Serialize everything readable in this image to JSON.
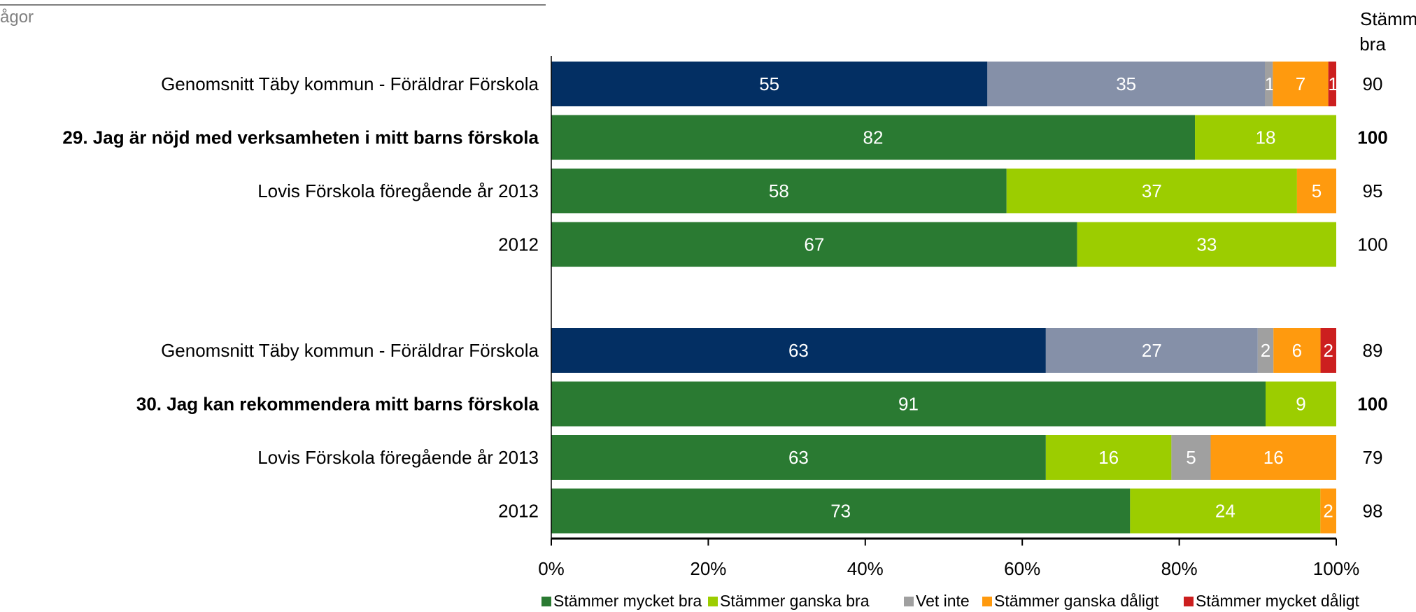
{
  "header_fragment": "ågor",
  "right_header": [
    "Stämmer",
    "bra"
  ],
  "chart_data": {
    "type": "bar",
    "orientation": "horizontal",
    "stacked": true,
    "percent_stacked": true,
    "series": [
      {
        "name": "Stämmer mycket bra",
        "color": "#2a7a32"
      },
      {
        "name": "Stämmer ganska bra",
        "color": "#9ccd00"
      },
      {
        "name": "Vet inte",
        "color": "#a0a0a0"
      },
      {
        "name": "Stämmer ganska dåligt",
        "color": "#ff9a0e"
      },
      {
        "name": "Stämmer mycket dåligt",
        "color": "#cc1f1f"
      }
    ],
    "benchmark_colors": [
      "#032f63",
      "#8590a8",
      "#a0a0a0",
      "#ff9a0e",
      "#cc1f1f"
    ],
    "groups": [
      {
        "rows": [
          {
            "label": "Genomsnitt Täby kommun - Föräldrar Förskola",
            "bold": false,
            "benchmark": true,
            "values": [
              55,
              35,
              1,
              7,
              1
            ],
            "value_labels": [
              "55",
              "35",
              "1",
              "7",
              "1"
            ],
            "stammer_bra": "90"
          },
          {
            "label": "29. Jag är nöjd med verksamheten i mitt barns förskola",
            "bold": true,
            "benchmark": false,
            "values": [
              82,
              18,
              0,
              0,
              0
            ],
            "value_labels": [
              "82",
              "18",
              "0",
              "",
              ""
            ],
            "stammer_bra": "100"
          },
          {
            "label": "Lovis Förskola föregående år 2013",
            "bold": false,
            "benchmark": false,
            "values": [
              58,
              37,
              0,
              5,
              0
            ],
            "value_labels": [
              "58",
              "37",
              "0",
              "5",
              "0"
            ],
            "stammer_bra": "95"
          },
          {
            "label": "2012",
            "bold": false,
            "benchmark": false,
            "values": [
              67,
              33,
              0,
              0,
              0
            ],
            "value_labels": [
              "67",
              "33",
              "0",
              "",
              ""
            ],
            "stammer_bra": "100"
          }
        ]
      },
      {
        "rows": [
          {
            "label": "Genomsnitt Täby kommun - Föräldrar Förskola",
            "bold": false,
            "benchmark": true,
            "values": [
              63,
              27,
              2,
              6,
              2
            ],
            "value_labels": [
              "63",
              "27",
              "2",
              "6",
              "2"
            ],
            "stammer_bra": "89"
          },
          {
            "label": "30. Jag kan rekommendera mitt barns förskola",
            "bold": true,
            "benchmark": false,
            "values": [
              91,
              9,
              0,
              0,
              0
            ],
            "value_labels": [
              "91",
              "9",
              "0",
              "",
              ""
            ],
            "stammer_bra": "100"
          },
          {
            "label": "Lovis Förskola föregående år 2013",
            "bold": false,
            "benchmark": false,
            "values": [
              63,
              16,
              5,
              16,
              0
            ],
            "value_labels": [
              "63",
              "16",
              "5",
              "16",
              "0"
            ],
            "stammer_bra": "79"
          },
          {
            "label": "2012",
            "bold": false,
            "benchmark": false,
            "values": [
              73,
              24,
              0,
              2,
              0
            ],
            "value_labels": [
              "73",
              "24",
              "0",
              "2",
              "0"
            ],
            "stammer_bra": "98"
          }
        ]
      }
    ],
    "x_ticks": [
      "0%",
      "20%",
      "40%",
      "60%",
      "80%",
      "100%"
    ],
    "xlim": [
      0,
      100
    ],
    "legend_position": "bottom"
  }
}
